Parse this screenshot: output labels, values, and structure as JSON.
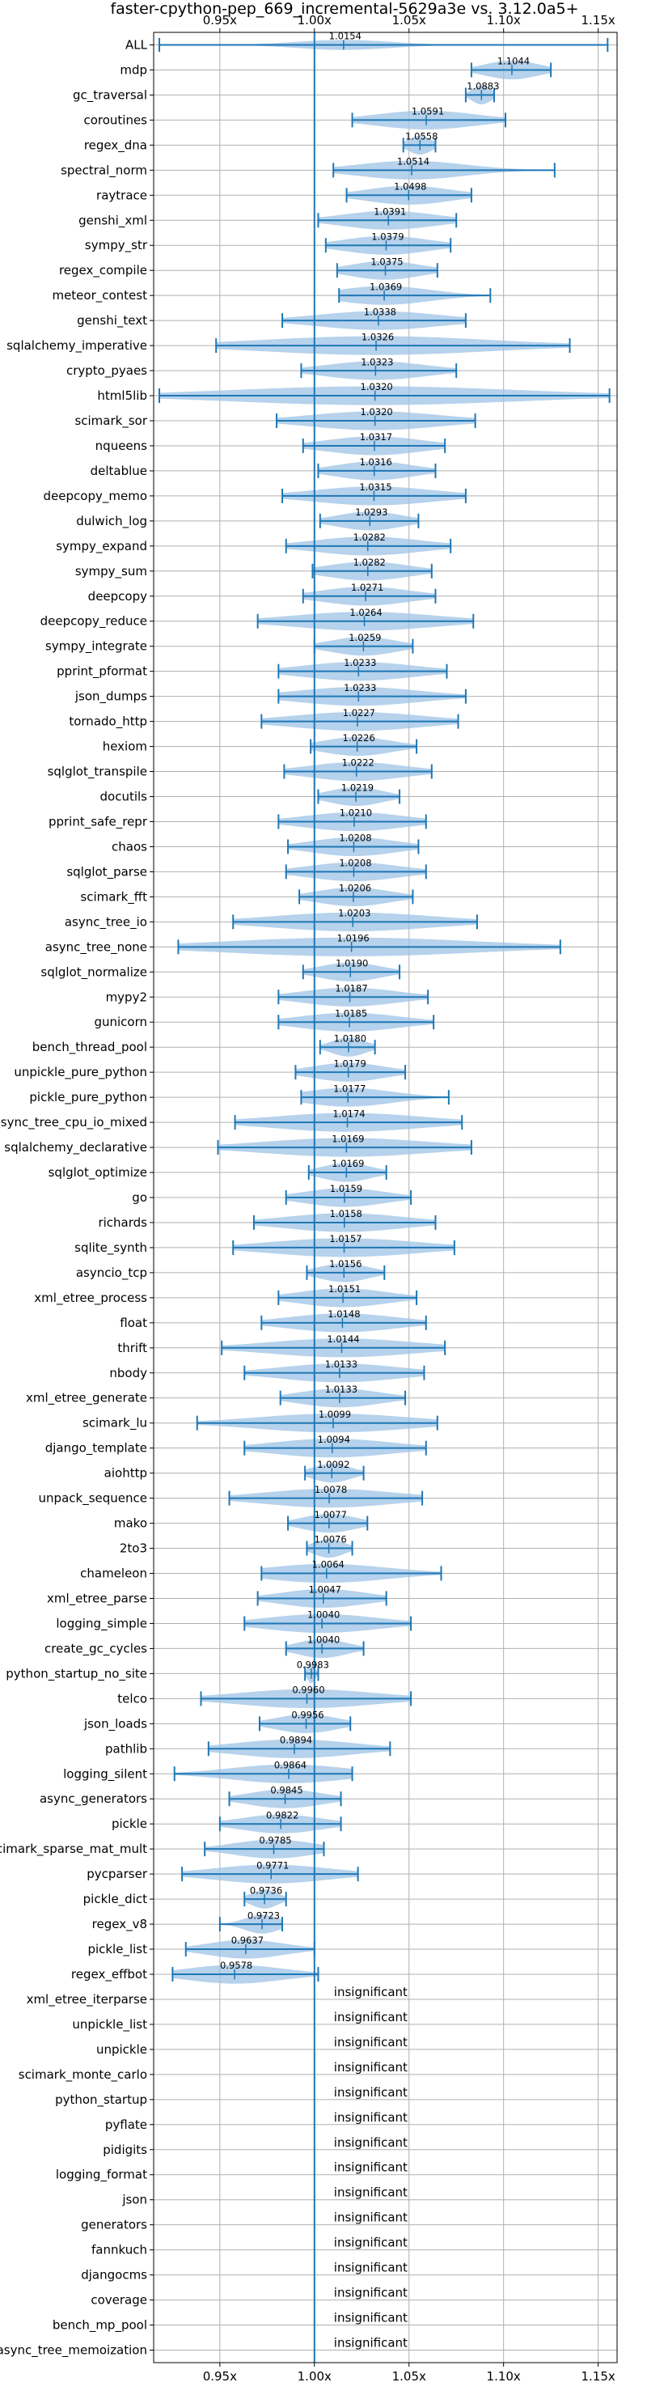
{
  "chart_data": {
    "type": "violin",
    "title": "faster-cpython-pep_669_incremental-5629a3e vs. 3.12.0a5+",
    "xlim": [
      0.915,
      1.16
    ],
    "x_ticks": [
      0.95,
      1.0,
      1.05,
      1.1,
      1.15
    ],
    "x_tick_labels": [
      "0.95x",
      "1.00x",
      "1.05x",
      "1.10x",
      "1.15x"
    ],
    "reference_line": 1.0,
    "grid": true,
    "colors": {
      "violin": "#9ec3e6",
      "whisker": "#1f77b4",
      "grid": "#b0b0b0"
    },
    "insignificant_label": "insignificant",
    "benchmarks": [
      {
        "name": "ALL",
        "mean": 1.0154,
        "min": 0.918,
        "max": 1.155,
        "spread": 0.025,
        "width": 0.4,
        "label": "1.0154"
      },
      {
        "name": "mdp",
        "mean": 1.1044,
        "min": 1.083,
        "max": 1.125,
        "spread": 0.014,
        "width": 0.75,
        "label": "1.1044"
      },
      {
        "name": "gc_traversal",
        "mean": 1.0883,
        "min": 1.08,
        "max": 1.095,
        "spread": 0.005,
        "width": 0.75,
        "label": "1.0883"
      },
      {
        "name": "coroutines",
        "mean": 1.0591,
        "min": 1.02,
        "max": 1.101,
        "spread": 0.026,
        "width": 0.75,
        "label": "1.0591"
      },
      {
        "name": "regex_dna",
        "mean": 1.0558,
        "min": 1.047,
        "max": 1.064,
        "spread": 0.006,
        "width": 0.75,
        "label": "1.0558"
      },
      {
        "name": "spectral_norm",
        "mean": 1.0514,
        "min": 1.01,
        "max": 1.127,
        "spread": 0.028,
        "width": 0.75,
        "label": "1.0514"
      },
      {
        "name": "raytrace",
        "mean": 1.0498,
        "min": 1.017,
        "max": 1.083,
        "spread": 0.022,
        "width": 0.75,
        "label": "1.0498"
      },
      {
        "name": "genshi_xml",
        "mean": 1.0391,
        "min": 1.002,
        "max": 1.075,
        "spread": 0.024,
        "width": 0.75,
        "label": "1.0391"
      },
      {
        "name": "sympy_str",
        "mean": 1.0379,
        "min": 1.006,
        "max": 1.072,
        "spread": 0.022,
        "width": 0.75,
        "label": "1.0379"
      },
      {
        "name": "regex_compile",
        "mean": 1.0375,
        "min": 1.012,
        "max": 1.065,
        "spread": 0.018,
        "width": 0.75,
        "label": "1.0375"
      },
      {
        "name": "meteor_contest",
        "mean": 1.0369,
        "min": 1.013,
        "max": 1.093,
        "spread": 0.024,
        "width": 0.75,
        "label": "1.0369"
      },
      {
        "name": "genshi_text",
        "mean": 1.0338,
        "min": 0.983,
        "max": 1.08,
        "spread": 0.032,
        "width": 0.75,
        "label": "1.0338"
      },
      {
        "name": "sqlalchemy_imperative",
        "mean": 1.0326,
        "min": 0.948,
        "max": 1.135,
        "spread": 0.06,
        "width": 0.75,
        "label": "1.0326"
      },
      {
        "name": "crypto_pyaes",
        "mean": 1.0323,
        "min": 0.993,
        "max": 1.075,
        "spread": 0.026,
        "width": 0.75,
        "label": "1.0323"
      },
      {
        "name": "html5lib",
        "mean": 1.032,
        "min": 0.918,
        "max": 1.156,
        "spread": 0.075,
        "width": 0.75,
        "label": "1.0320"
      },
      {
        "name": "scimark_sor",
        "mean": 1.032,
        "min": 0.98,
        "max": 1.085,
        "spread": 0.034,
        "width": 0.75,
        "label": "1.0320"
      },
      {
        "name": "nqueens",
        "mean": 1.0317,
        "min": 0.994,
        "max": 1.069,
        "spread": 0.025,
        "width": 0.75,
        "label": "1.0317"
      },
      {
        "name": "deltablue",
        "mean": 1.0316,
        "min": 1.002,
        "max": 1.064,
        "spread": 0.02,
        "width": 0.75,
        "label": "1.0316"
      },
      {
        "name": "deepcopy_memo",
        "mean": 1.0315,
        "min": 0.983,
        "max": 1.08,
        "spread": 0.032,
        "width": 0.75,
        "label": "1.0315"
      },
      {
        "name": "dulwich_log",
        "mean": 1.0293,
        "min": 1.003,
        "max": 1.055,
        "spread": 0.017,
        "width": 0.75,
        "label": "1.0293"
      },
      {
        "name": "sympy_expand",
        "mean": 1.0282,
        "min": 0.985,
        "max": 1.072,
        "spread": 0.028,
        "width": 0.75,
        "label": "1.0282"
      },
      {
        "name": "sympy_sum",
        "mean": 1.0282,
        "min": 0.999,
        "max": 1.062,
        "spread": 0.021,
        "width": 0.75,
        "label": "1.0282"
      },
      {
        "name": "deepcopy",
        "mean": 1.0271,
        "min": 0.994,
        "max": 1.064,
        "spread": 0.023,
        "width": 0.75,
        "label": "1.0271"
      },
      {
        "name": "deepcopy_reduce",
        "mean": 1.0264,
        "min": 0.97,
        "max": 1.084,
        "spread": 0.037,
        "width": 0.75,
        "label": "1.0264"
      },
      {
        "name": "sympy_integrate",
        "mean": 1.0259,
        "min": 1.0,
        "max": 1.052,
        "spread": 0.017,
        "width": 0.75,
        "label": "1.0259"
      },
      {
        "name": "pprint_pformat",
        "mean": 1.0233,
        "min": 0.981,
        "max": 1.07,
        "spread": 0.029,
        "width": 0.75,
        "label": "1.0233"
      },
      {
        "name": "json_dumps",
        "mean": 1.0233,
        "min": 0.981,
        "max": 1.08,
        "spread": 0.032,
        "width": 0.75,
        "label": "1.0233"
      },
      {
        "name": "tornado_http",
        "mean": 1.0227,
        "min": 0.972,
        "max": 1.076,
        "spread": 0.034,
        "width": 0.75,
        "label": "1.0227"
      },
      {
        "name": "hexiom",
        "mean": 1.0226,
        "min": 0.998,
        "max": 1.054,
        "spread": 0.018,
        "width": 0.75,
        "label": "1.0226"
      },
      {
        "name": "sqlglot_transpile",
        "mean": 1.0222,
        "min": 0.984,
        "max": 1.062,
        "spread": 0.025,
        "width": 0.75,
        "label": "1.0222"
      },
      {
        "name": "docutils",
        "mean": 1.0219,
        "min": 1.002,
        "max": 1.045,
        "spread": 0.014,
        "width": 0.75,
        "label": "1.0219"
      },
      {
        "name": "pprint_safe_repr",
        "mean": 1.021,
        "min": 0.981,
        "max": 1.059,
        "spread": 0.026,
        "width": 0.75,
        "label": "1.0210"
      },
      {
        "name": "chaos",
        "mean": 1.0208,
        "min": 0.986,
        "max": 1.055,
        "spread": 0.022,
        "width": 0.75,
        "label": "1.0208"
      },
      {
        "name": "sqlglot_parse",
        "mean": 1.0208,
        "min": 0.985,
        "max": 1.059,
        "spread": 0.024,
        "width": 0.75,
        "label": "1.0208"
      },
      {
        "name": "scimark_fft",
        "mean": 1.0206,
        "min": 0.992,
        "max": 1.052,
        "spread": 0.019,
        "width": 0.75,
        "label": "1.0206"
      },
      {
        "name": "async_tree_io",
        "mean": 1.0203,
        "min": 0.957,
        "max": 1.086,
        "spread": 0.042,
        "width": 0.75,
        "label": "1.0203"
      },
      {
        "name": "async_tree_none",
        "mean": 1.0196,
        "min": 0.928,
        "max": 1.13,
        "spread": 0.065,
        "width": 0.75,
        "label": "1.0196"
      },
      {
        "name": "sqlglot_normalize",
        "mean": 1.019,
        "min": 0.994,
        "max": 1.045,
        "spread": 0.016,
        "width": 0.75,
        "label": "1.0190"
      },
      {
        "name": "mypy2",
        "mean": 1.0187,
        "min": 0.981,
        "max": 1.06,
        "spread": 0.025,
        "width": 0.75,
        "label": "1.0187"
      },
      {
        "name": "gunicorn",
        "mean": 1.0185,
        "min": 0.981,
        "max": 1.063,
        "spread": 0.026,
        "width": 0.75,
        "label": "1.0185"
      },
      {
        "name": "bench_thread_pool",
        "mean": 1.018,
        "min": 1.003,
        "max": 1.032,
        "spread": 0.009,
        "width": 0.75,
        "label": "1.0180"
      },
      {
        "name": "unpickle_pure_python",
        "mean": 1.0179,
        "min": 0.99,
        "max": 1.048,
        "spread": 0.019,
        "width": 0.75,
        "label": "1.0179"
      },
      {
        "name": "pickle_pure_python",
        "mean": 1.0177,
        "min": 0.993,
        "max": 1.071,
        "spread": 0.023,
        "width": 0.75,
        "label": "1.0177"
      },
      {
        "name": "async_tree_cpu_io_mixed",
        "mean": 1.0174,
        "min": 0.958,
        "max": 1.078,
        "spread": 0.039,
        "width": 0.75,
        "label": "1.0174"
      },
      {
        "name": "sqlalchemy_declarative",
        "mean": 1.0169,
        "min": 0.949,
        "max": 1.083,
        "spread": 0.043,
        "width": 0.75,
        "label": "1.0169"
      },
      {
        "name": "sqlglot_optimize",
        "mean": 1.0169,
        "min": 0.997,
        "max": 1.038,
        "spread": 0.013,
        "width": 0.75,
        "label": "1.0169"
      },
      {
        "name": "go",
        "mean": 1.0159,
        "min": 0.985,
        "max": 1.051,
        "spread": 0.021,
        "width": 0.75,
        "label": "1.0159"
      },
      {
        "name": "richards",
        "mean": 1.0158,
        "min": 0.968,
        "max": 1.064,
        "spread": 0.031,
        "width": 0.75,
        "label": "1.0158"
      },
      {
        "name": "sqlite_synth",
        "mean": 1.0157,
        "min": 0.957,
        "max": 1.074,
        "spread": 0.038,
        "width": 0.75,
        "label": "1.0157"
      },
      {
        "name": "asyncio_tcp",
        "mean": 1.0156,
        "min": 0.996,
        "max": 1.037,
        "spread": 0.013,
        "width": 0.75,
        "label": "1.0156"
      },
      {
        "name": "xml_etree_process",
        "mean": 1.0151,
        "min": 0.981,
        "max": 1.054,
        "spread": 0.023,
        "width": 0.75,
        "label": "1.0151"
      },
      {
        "name": "float",
        "mean": 1.0148,
        "min": 0.972,
        "max": 1.059,
        "spread": 0.028,
        "width": 0.75,
        "label": "1.0148"
      },
      {
        "name": "thrift",
        "mean": 1.0144,
        "min": 0.951,
        "max": 1.069,
        "spread": 0.038,
        "width": 0.75,
        "label": "1.0144"
      },
      {
        "name": "nbody",
        "mean": 1.0133,
        "min": 0.963,
        "max": 1.058,
        "spread": 0.031,
        "width": 0.75,
        "label": "1.0133"
      },
      {
        "name": "xml_etree_generate",
        "mean": 1.0133,
        "min": 0.982,
        "max": 1.048,
        "spread": 0.021,
        "width": 0.75,
        "label": "1.0133"
      },
      {
        "name": "scimark_lu",
        "mean": 1.0099,
        "min": 0.938,
        "max": 1.065,
        "spread": 0.04,
        "width": 0.75,
        "label": "1.0099"
      },
      {
        "name": "django_template",
        "mean": 1.0094,
        "min": 0.963,
        "max": 1.059,
        "spread": 0.031,
        "width": 0.75,
        "label": "1.0094"
      },
      {
        "name": "aiohttp",
        "mean": 1.0092,
        "min": 0.995,
        "max": 1.026,
        "spread": 0.01,
        "width": 0.75,
        "label": "1.0092"
      },
      {
        "name": "unpack_sequence",
        "mean": 1.0078,
        "min": 0.955,
        "max": 1.057,
        "spread": 0.034,
        "width": 0.75,
        "label": "1.0078"
      },
      {
        "name": "mako",
        "mean": 1.0077,
        "min": 0.986,
        "max": 1.028,
        "spread": 0.014,
        "width": 0.75,
        "label": "1.0077"
      },
      {
        "name": "2to3",
        "mean": 1.0076,
        "min": 0.996,
        "max": 1.02,
        "spread": 0.008,
        "width": 0.75,
        "label": "1.0076"
      },
      {
        "name": "chameleon",
        "mean": 1.0064,
        "min": 0.972,
        "max": 1.067,
        "spread": 0.032,
        "width": 0.75,
        "label": "1.0064"
      },
      {
        "name": "xml_etree_parse",
        "mean": 1.0047,
        "min": 0.97,
        "max": 1.038,
        "spread": 0.022,
        "width": 0.75,
        "label": "1.0047"
      },
      {
        "name": "logging_simple",
        "mean": 1.004,
        "min": 0.963,
        "max": 1.051,
        "spread": 0.029,
        "width": 0.75,
        "label": "1.0040"
      },
      {
        "name": "create_gc_cycles",
        "mean": 1.004,
        "min": 0.985,
        "max": 1.026,
        "spread": 0.013,
        "width": 0.75,
        "label": "1.0040"
      },
      {
        "name": "python_startup_no_site",
        "mean": 0.9983,
        "min": 0.995,
        "max": 1.002,
        "spread": 0.002,
        "width": 0.75,
        "label": "0.9983"
      },
      {
        "name": "telco",
        "mean": 0.996,
        "min": 0.94,
        "max": 1.051,
        "spread": 0.036,
        "width": 0.75,
        "label": "0.9960"
      },
      {
        "name": "json_loads",
        "mean": 0.9956,
        "min": 0.971,
        "max": 1.019,
        "spread": 0.016,
        "width": 0.75,
        "label": "0.9956"
      },
      {
        "name": "pathlib",
        "mean": 0.9894,
        "min": 0.944,
        "max": 1.04,
        "spread": 0.031,
        "width": 0.75,
        "label": "0.9894"
      },
      {
        "name": "logging_silent",
        "mean": 0.9864,
        "min": 0.926,
        "max": 1.02,
        "spread": 0.03,
        "width": 0.75,
        "label": "0.9864"
      },
      {
        "name": "async_generators",
        "mean": 0.9845,
        "min": 0.955,
        "max": 1.014,
        "spread": 0.019,
        "width": 0.75,
        "label": "0.9845"
      },
      {
        "name": "pickle",
        "mean": 0.9822,
        "min": 0.95,
        "max": 1.014,
        "spread": 0.021,
        "width": 0.75,
        "label": "0.9822"
      },
      {
        "name": "scimark_sparse_mat_mult",
        "mean": 0.9785,
        "min": 0.942,
        "max": 1.005,
        "spread": 0.021,
        "width": 0.75,
        "label": "0.9785"
      },
      {
        "name": "pycparser",
        "mean": 0.9771,
        "min": 0.93,
        "max": 1.023,
        "spread": 0.03,
        "width": 0.75,
        "label": "0.9771"
      },
      {
        "name": "pickle_dict",
        "mean": 0.9736,
        "min": 0.963,
        "max": 0.985,
        "spread": 0.007,
        "width": 0.75,
        "label": "0.9736"
      },
      {
        "name": "regex_v8",
        "mean": 0.9723,
        "min": 0.95,
        "max": 0.983,
        "spread": 0.009,
        "width": 0.75,
        "label": "0.9723"
      },
      {
        "name": "pickle_list",
        "mean": 0.9637,
        "min": 0.932,
        "max": 1.0,
        "spread": 0.02,
        "width": 0.75,
        "label": "0.9637"
      },
      {
        "name": "regex_effbot",
        "mean": 0.9578,
        "min": 0.925,
        "max": 1.002,
        "spread": 0.025,
        "width": 0.75,
        "label": "0.9578"
      },
      {
        "name": "xml_etree_iterparse",
        "insignificant": true
      },
      {
        "name": "unpickle_list",
        "insignificant": true
      },
      {
        "name": "unpickle",
        "insignificant": true
      },
      {
        "name": "scimark_monte_carlo",
        "insignificant": true
      },
      {
        "name": "python_startup",
        "insignificant": true
      },
      {
        "name": "pyflate",
        "insignificant": true
      },
      {
        "name": "pidigits",
        "insignificant": true
      },
      {
        "name": "logging_format",
        "insignificant": true
      },
      {
        "name": "json",
        "insignificant": true
      },
      {
        "name": "generators",
        "insignificant": true
      },
      {
        "name": "fannkuch",
        "insignificant": true
      },
      {
        "name": "djangocms",
        "insignificant": true
      },
      {
        "name": "coverage",
        "insignificant": true
      },
      {
        "name": "bench_mp_pool",
        "insignificant": true
      },
      {
        "name": "async_tree_memoization",
        "insignificant": true
      }
    ]
  }
}
